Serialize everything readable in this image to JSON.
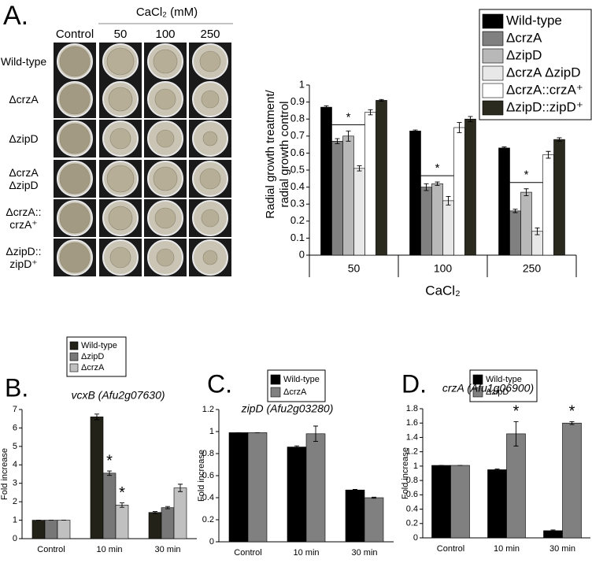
{
  "panel_a_plates": {
    "label": "A.",
    "header": "CaCl₂ (mM)",
    "columns": [
      "Control",
      "50",
      "100",
      "250"
    ],
    "rows": [
      "Wild-type",
      "ΔcrzA",
      "ΔzipD",
      "ΔcrzA\nΔzipD",
      "ΔcrzA::\ncrzA⁺",
      "ΔzipD::\nzipD⁺"
    ]
  },
  "chart_data": [
    {
      "type": "bar",
      "ylabel": "Radial growth treatment/\nradial growth control",
      "xlabel": "CaCl₂",
      "categories": [
        "50",
        "100",
        "250"
      ],
      "legend": "top-right",
      "ylim": [
        0,
        1
      ],
      "yticks": [
        0,
        0.1,
        0.2,
        0.3,
        0.4,
        0.5,
        0.6,
        0.7,
        0.8,
        0.9,
        1
      ],
      "series": [
        {
          "name": "Wild-type",
          "color": "#000000",
          "values": [
            0.87,
            0.73,
            0.63
          ],
          "errors": [
            0.008,
            0.006,
            0.006
          ]
        },
        {
          "name": "ΔcrzA",
          "color": "#808080",
          "values": [
            0.67,
            0.4,
            0.26
          ],
          "errors": [
            0.015,
            0.02,
            0.01
          ]
        },
        {
          "name": "ΔzipD",
          "color": "#b8b8b8",
          "values": [
            0.7,
            0.42,
            0.37
          ],
          "errors": [
            0.03,
            0.01,
            0.02
          ]
        },
        {
          "name": "ΔcrzA ΔzipD",
          "color": "#e8e8e8",
          "values": [
            0.51,
            0.32,
            0.14
          ],
          "errors": [
            0.015,
            0.025,
            0.02
          ]
        },
        {
          "name": "ΔcrzA::crzA⁺",
          "color": "#ffffff",
          "values": [
            0.84,
            0.75,
            0.59
          ],
          "errors": [
            0.015,
            0.03,
            0.02
          ]
        },
        {
          "name": "ΔzipD::zipD⁺",
          "color": "#2a2a1e",
          "values": [
            0.91,
            0.8,
            0.68
          ],
          "errors": [
            0.005,
            0.015,
            0.01
          ]
        }
      ],
      "annotations": [
        {
          "text": "*",
          "category": "50",
          "from": "ΔcrzA",
          "to": "ΔcrzA ΔzipD"
        },
        {
          "text": "*",
          "category": "100",
          "from": "ΔcrzA",
          "to": "ΔcrzA ΔzipD"
        },
        {
          "text": "*",
          "category": "250",
          "from": "ΔcrzA",
          "to": "ΔcrzA ΔzipD"
        }
      ]
    },
    {
      "type": "bar",
      "panel_label": "B.",
      "title": "vcxB (Afu2g07630)",
      "ylabel": "Fold increase",
      "categories": [
        "Control",
        "10 min",
        "30 min"
      ],
      "legend": "top",
      "ylim": [
        0,
        7
      ],
      "yticks": [
        0,
        1,
        2,
        3,
        4,
        5,
        6,
        7
      ],
      "series": [
        {
          "name": "Wild-type",
          "color": "#222218",
          "values": [
            1,
            6.6,
            1.42
          ],
          "errors": [
            0,
            0.15,
            0.05
          ]
        },
        {
          "name": "ΔzipD",
          "color": "#777777",
          "values": [
            1,
            3.55,
            1.68
          ],
          "errors": [
            0,
            0.12,
            0.06
          ]
        },
        {
          "name": "ΔcrzA",
          "color": "#c0c0c0",
          "values": [
            1,
            1.82,
            2.75
          ],
          "errors": [
            0,
            0.12,
            0.2
          ]
        }
      ],
      "annotations": [
        {
          "text": "*",
          "category": "10 min",
          "series": "ΔzipD"
        },
        {
          "text": "*",
          "category": "10 min",
          "series": "ΔcrzA"
        }
      ]
    },
    {
      "type": "bar",
      "panel_label": "C.",
      "title": "zipD (Afu2g03280)",
      "ylabel": "Fold increase",
      "categories": [
        "Control",
        "10 min",
        "30 min"
      ],
      "legend": "top",
      "ylim": [
        0,
        1.2
      ],
      "yticks": [
        0,
        0.2,
        0.4,
        0.6,
        0.8,
        1,
        1.2
      ],
      "series": [
        {
          "name": "Wild-type",
          "color": "#000000",
          "values": [
            0.99,
            0.86,
            0.47
          ],
          "errors": [
            0,
            0.01,
            0.005
          ]
        },
        {
          "name": "ΔcrzA",
          "color": "#808080",
          "values": [
            0.99,
            0.98,
            0.4
          ],
          "errors": [
            0,
            0.07,
            0.005
          ]
        }
      ]
    },
    {
      "type": "bar",
      "panel_label": "D.",
      "title": "crzA (Afu1g06900)",
      "ylabel": "Fold increase",
      "categories": [
        "Control",
        "10 min",
        "30 min"
      ],
      "legend": "top",
      "ylim": [
        0,
        1.8
      ],
      "yticks": [
        0,
        0.2,
        0.4,
        0.6,
        0.8,
        1,
        1.2,
        1.4,
        1.6,
        1.8
      ],
      "series": [
        {
          "name": "Wild-type",
          "color": "#000000",
          "values": [
            1.01,
            0.95,
            0.1
          ],
          "errors": [
            0,
            0.01,
            0.01
          ]
        },
        {
          "name": "ΔzipD",
          "color": "#808080",
          "values": [
            1.01,
            1.45,
            1.6
          ],
          "errors": [
            0,
            0.17,
            0.02
          ]
        }
      ],
      "annotations": [
        {
          "text": "*",
          "category": "10 min",
          "series": "ΔzipD"
        },
        {
          "text": "*",
          "category": "30 min",
          "series": "ΔzipD"
        }
      ]
    }
  ]
}
